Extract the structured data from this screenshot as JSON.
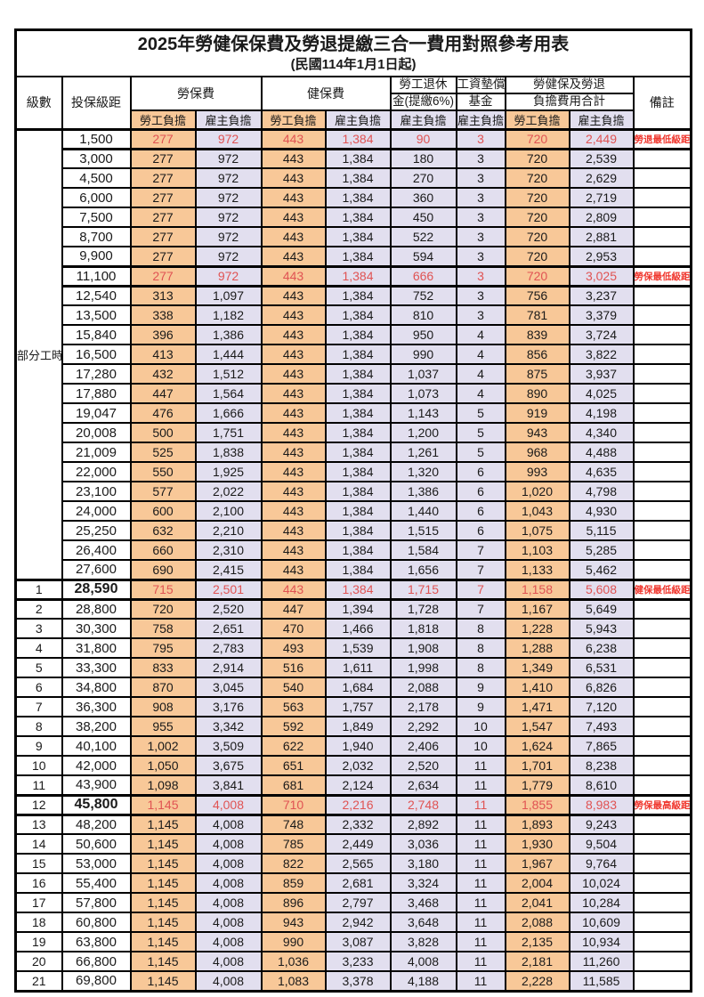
{
  "title": "2025年勞健保保費及勞退提繳三合一費用對照參考用表",
  "subtitle": "(民國114年1月1日起)",
  "colors": {
    "employee_col_bg": "#f8c898",
    "employer_col_bg": "#e2dfef",
    "highlight_text": "#e05353",
    "remark_text": "#f0372e",
    "border": "#000000"
  },
  "header": {
    "level": "級數",
    "bracket": "投保級距",
    "labor_ins": "勞保費",
    "health_ins": "健保費",
    "pension_line1": "勞工退休",
    "pension_line2": "金(提繳6%)",
    "wage_fund_line1": "工資墊償",
    "wage_fund_line2": "基金",
    "total_line1": "勞健保及勞退",
    "total_line2": "負擔費用合計",
    "remark": "備註",
    "employee": "勞工負擔",
    "employer": "雇主負擔"
  },
  "part_time_label": "部分工時",
  "part_time_span": 23,
  "rows": [
    {
      "level": "",
      "bracket": "1,500",
      "cells": [
        "277",
        "972",
        "443",
        "1,384",
        "90",
        "3",
        "720",
        "2,449"
      ],
      "remark": "勞退最低級距",
      "highlight": true,
      "bold_bracket": false
    },
    {
      "level": "",
      "bracket": "3,000",
      "cells": [
        "277",
        "972",
        "443",
        "1,384",
        "180",
        "3",
        "720",
        "2,539"
      ],
      "remark": "",
      "highlight": false,
      "bold_bracket": false
    },
    {
      "level": "",
      "bracket": "4,500",
      "cells": [
        "277",
        "972",
        "443",
        "1,384",
        "270",
        "3",
        "720",
        "2,629"
      ],
      "remark": "",
      "highlight": false,
      "bold_bracket": false
    },
    {
      "level": "",
      "bracket": "6,000",
      "cells": [
        "277",
        "972",
        "443",
        "1,384",
        "360",
        "3",
        "720",
        "2,719"
      ],
      "remark": "",
      "highlight": false,
      "bold_bracket": false
    },
    {
      "level": "",
      "bracket": "7,500",
      "cells": [
        "277",
        "972",
        "443",
        "1,384",
        "450",
        "3",
        "720",
        "2,809"
      ],
      "remark": "",
      "highlight": false,
      "bold_bracket": false
    },
    {
      "level": "",
      "bracket": "8,700",
      "cells": [
        "277",
        "972",
        "443",
        "1,384",
        "522",
        "3",
        "720",
        "2,881"
      ],
      "remark": "",
      "highlight": false,
      "bold_bracket": false
    },
    {
      "level": "",
      "bracket": "9,900",
      "cells": [
        "277",
        "972",
        "443",
        "1,384",
        "594",
        "3",
        "720",
        "2,953"
      ],
      "remark": "",
      "highlight": false,
      "bold_bracket": false
    },
    {
      "level": "",
      "bracket": "11,100",
      "cells": [
        "277",
        "972",
        "443",
        "1,384",
        "666",
        "3",
        "720",
        "3,025"
      ],
      "remark": "勞保最低級距",
      "highlight": true,
      "bold_bracket": false
    },
    {
      "level": "",
      "bracket": "12,540",
      "cells": [
        "313",
        "1,097",
        "443",
        "1,384",
        "752",
        "3",
        "756",
        "3,237"
      ],
      "remark": "",
      "highlight": false,
      "bold_bracket": false
    },
    {
      "level": "",
      "bracket": "13,500",
      "cells": [
        "338",
        "1,182",
        "443",
        "1,384",
        "810",
        "3",
        "781",
        "3,379"
      ],
      "remark": "",
      "highlight": false,
      "bold_bracket": false
    },
    {
      "level": "",
      "bracket": "15,840",
      "cells": [
        "396",
        "1,386",
        "443",
        "1,384",
        "950",
        "4",
        "839",
        "3,724"
      ],
      "remark": "",
      "highlight": false,
      "bold_bracket": false
    },
    {
      "level": "",
      "bracket": "16,500",
      "cells": [
        "413",
        "1,444",
        "443",
        "1,384",
        "990",
        "4",
        "856",
        "3,822"
      ],
      "remark": "",
      "highlight": false,
      "bold_bracket": false
    },
    {
      "level": "",
      "bracket": "17,280",
      "cells": [
        "432",
        "1,512",
        "443",
        "1,384",
        "1,037",
        "4",
        "875",
        "3,937"
      ],
      "remark": "",
      "highlight": false,
      "bold_bracket": false
    },
    {
      "level": "",
      "bracket": "17,880",
      "cells": [
        "447",
        "1,564",
        "443",
        "1,384",
        "1,073",
        "4",
        "890",
        "4,025"
      ],
      "remark": "",
      "highlight": false,
      "bold_bracket": false
    },
    {
      "level": "",
      "bracket": "19,047",
      "cells": [
        "476",
        "1,666",
        "443",
        "1,384",
        "1,143",
        "5",
        "919",
        "4,198"
      ],
      "remark": "",
      "highlight": false,
      "bold_bracket": false
    },
    {
      "level": "",
      "bracket": "20,008",
      "cells": [
        "500",
        "1,751",
        "443",
        "1,384",
        "1,200",
        "5",
        "943",
        "4,340"
      ],
      "remark": "",
      "highlight": false,
      "bold_bracket": false
    },
    {
      "level": "",
      "bracket": "21,009",
      "cells": [
        "525",
        "1,838",
        "443",
        "1,384",
        "1,261",
        "5",
        "968",
        "4,488"
      ],
      "remark": "",
      "highlight": false,
      "bold_bracket": false
    },
    {
      "level": "",
      "bracket": "22,000",
      "cells": [
        "550",
        "1,925",
        "443",
        "1,384",
        "1,320",
        "6",
        "993",
        "4,635"
      ],
      "remark": "",
      "highlight": false,
      "bold_bracket": false
    },
    {
      "level": "",
      "bracket": "23,100",
      "cells": [
        "577",
        "2,022",
        "443",
        "1,384",
        "1,386",
        "6",
        "1,020",
        "4,798"
      ],
      "remark": "",
      "highlight": false,
      "bold_bracket": false
    },
    {
      "level": "",
      "bracket": "24,000",
      "cells": [
        "600",
        "2,100",
        "443",
        "1,384",
        "1,440",
        "6",
        "1,043",
        "4,930"
      ],
      "remark": "",
      "highlight": false,
      "bold_bracket": false
    },
    {
      "level": "",
      "bracket": "25,250",
      "cells": [
        "632",
        "2,210",
        "443",
        "1,384",
        "1,515",
        "6",
        "1,075",
        "5,115"
      ],
      "remark": "",
      "highlight": false,
      "bold_bracket": false
    },
    {
      "level": "",
      "bracket": "26,400",
      "cells": [
        "660",
        "2,310",
        "443",
        "1,384",
        "1,584",
        "7",
        "1,103",
        "5,285"
      ],
      "remark": "",
      "highlight": false,
      "bold_bracket": false
    },
    {
      "level": "",
      "bracket": "27,600",
      "cells": [
        "690",
        "2,415",
        "443",
        "1,384",
        "1,656",
        "7",
        "1,133",
        "5,462"
      ],
      "remark": "",
      "highlight": false,
      "bold_bracket": false
    },
    {
      "level": "1",
      "bracket": "28,590",
      "cells": [
        "715",
        "2,501",
        "443",
        "1,384",
        "1,715",
        "7",
        "1,158",
        "5,608"
      ],
      "remark": "健保最低級距",
      "highlight": true,
      "bold_bracket": true
    },
    {
      "level": "2",
      "bracket": "28,800",
      "cells": [
        "720",
        "2,520",
        "447",
        "1,394",
        "1,728",
        "7",
        "1,167",
        "5,649"
      ],
      "remark": "",
      "highlight": false,
      "bold_bracket": false
    },
    {
      "level": "3",
      "bracket": "30,300",
      "cells": [
        "758",
        "2,651",
        "470",
        "1,466",
        "1,818",
        "8",
        "1,228",
        "5,943"
      ],
      "remark": "",
      "highlight": false,
      "bold_bracket": false
    },
    {
      "level": "4",
      "bracket": "31,800",
      "cells": [
        "795",
        "2,783",
        "493",
        "1,539",
        "1,908",
        "8",
        "1,288",
        "6,238"
      ],
      "remark": "",
      "highlight": false,
      "bold_bracket": false
    },
    {
      "level": "5",
      "bracket": "33,300",
      "cells": [
        "833",
        "2,914",
        "516",
        "1,611",
        "1,998",
        "8",
        "1,349",
        "6,531"
      ],
      "remark": "",
      "highlight": false,
      "bold_bracket": false
    },
    {
      "level": "6",
      "bracket": "34,800",
      "cells": [
        "870",
        "3,045",
        "540",
        "1,684",
        "2,088",
        "9",
        "1,410",
        "6,826"
      ],
      "remark": "",
      "highlight": false,
      "bold_bracket": false
    },
    {
      "level": "7",
      "bracket": "36,300",
      "cells": [
        "908",
        "3,176",
        "563",
        "1,757",
        "2,178",
        "9",
        "1,471",
        "7,120"
      ],
      "remark": "",
      "highlight": false,
      "bold_bracket": false
    },
    {
      "level": "8",
      "bracket": "38,200",
      "cells": [
        "955",
        "3,342",
        "592",
        "1,849",
        "2,292",
        "10",
        "1,547",
        "7,493"
      ],
      "remark": "",
      "highlight": false,
      "bold_bracket": false
    },
    {
      "level": "9",
      "bracket": "40,100",
      "cells": [
        "1,002",
        "3,509",
        "622",
        "1,940",
        "2,406",
        "10",
        "1,624",
        "7,865"
      ],
      "remark": "",
      "highlight": false,
      "bold_bracket": false
    },
    {
      "level": "10",
      "bracket": "42,000",
      "cells": [
        "1,050",
        "3,675",
        "651",
        "2,032",
        "2,520",
        "11",
        "1,701",
        "8,238"
      ],
      "remark": "",
      "highlight": false,
      "bold_bracket": false
    },
    {
      "level": "11",
      "bracket": "43,900",
      "cells": [
        "1,098",
        "3,841",
        "681",
        "2,124",
        "2,634",
        "11",
        "1,779",
        "8,610"
      ],
      "remark": "",
      "highlight": false,
      "bold_bracket": false
    },
    {
      "level": "12",
      "bracket": "45,800",
      "cells": [
        "1,145",
        "4,008",
        "710",
        "2,216",
        "2,748",
        "11",
        "1,855",
        "8,983"
      ],
      "remark": "勞保最高級距",
      "highlight": true,
      "bold_bracket": true
    },
    {
      "level": "13",
      "bracket": "48,200",
      "cells": [
        "1,145",
        "4,008",
        "748",
        "2,332",
        "2,892",
        "11",
        "1,893",
        "9,243"
      ],
      "remark": "",
      "highlight": false,
      "bold_bracket": false
    },
    {
      "level": "14",
      "bracket": "50,600",
      "cells": [
        "1,145",
        "4,008",
        "785",
        "2,449",
        "3,036",
        "11",
        "1,930",
        "9,504"
      ],
      "remark": "",
      "highlight": false,
      "bold_bracket": false
    },
    {
      "level": "15",
      "bracket": "53,000",
      "cells": [
        "1,145",
        "4,008",
        "822",
        "2,565",
        "3,180",
        "11",
        "1,967",
        "9,764"
      ],
      "remark": "",
      "highlight": false,
      "bold_bracket": false
    },
    {
      "level": "16",
      "bracket": "55,400",
      "cells": [
        "1,145",
        "4,008",
        "859",
        "2,681",
        "3,324",
        "11",
        "2,004",
        "10,024"
      ],
      "remark": "",
      "highlight": false,
      "bold_bracket": false
    },
    {
      "level": "17",
      "bracket": "57,800",
      "cells": [
        "1,145",
        "4,008",
        "896",
        "2,797",
        "3,468",
        "11",
        "2,041",
        "10,284"
      ],
      "remark": "",
      "highlight": false,
      "bold_bracket": false
    },
    {
      "level": "18",
      "bracket": "60,800",
      "cells": [
        "1,145",
        "4,008",
        "943",
        "2,942",
        "3,648",
        "11",
        "2,088",
        "10,609"
      ],
      "remark": "",
      "highlight": false,
      "bold_bracket": false
    },
    {
      "level": "19",
      "bracket": "63,800",
      "cells": [
        "1,145",
        "4,008",
        "990",
        "3,087",
        "3,828",
        "11",
        "2,135",
        "10,934"
      ],
      "remark": "",
      "highlight": false,
      "bold_bracket": false
    },
    {
      "level": "20",
      "bracket": "66,800",
      "cells": [
        "1,145",
        "4,008",
        "1,036",
        "3,233",
        "4,008",
        "11",
        "2,181",
        "11,260"
      ],
      "remark": "",
      "highlight": false,
      "bold_bracket": false
    },
    {
      "level": "21",
      "bracket": "69,800",
      "cells": [
        "1,145",
        "4,008",
        "1,083",
        "3,378",
        "4,188",
        "11",
        "2,228",
        "11,585"
      ],
      "remark": "",
      "highlight": false,
      "bold_bracket": false
    }
  ]
}
